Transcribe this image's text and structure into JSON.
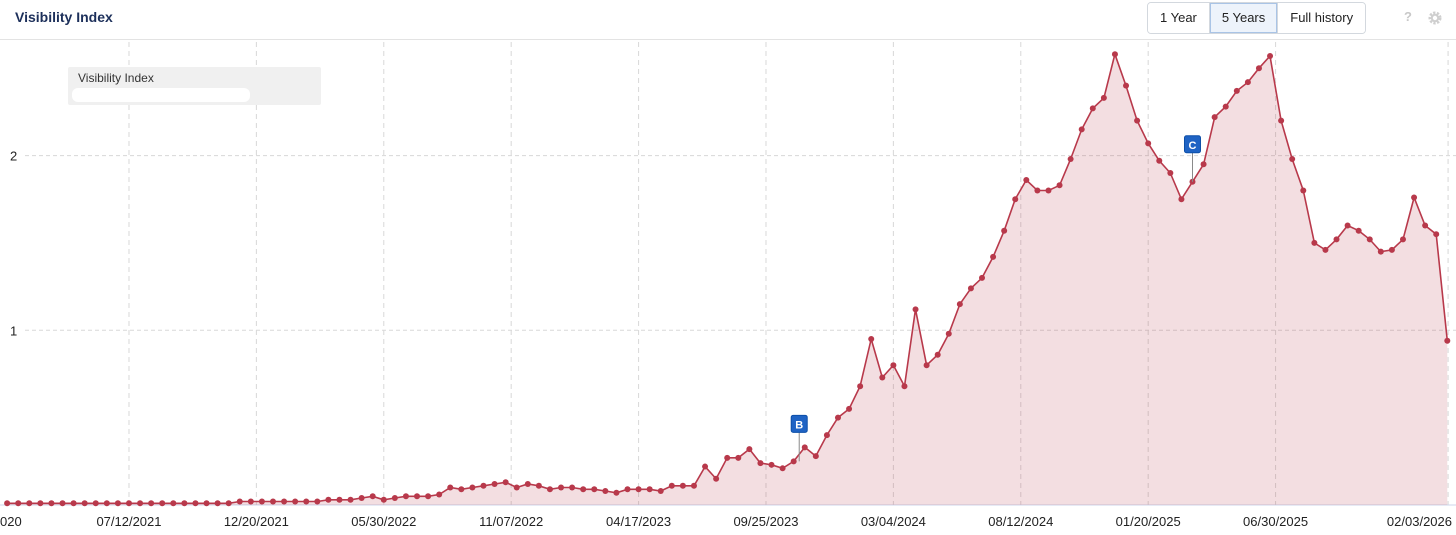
{
  "header": {
    "buttons": [
      "1 Year",
      "5 Years",
      "Full history"
    ],
    "active_button": 1,
    "help_icon": "?"
  },
  "chart_data": {
    "type": "area",
    "title": "Visibility Index",
    "x": [
      "2021-02-08",
      "2021-02-22",
      "2021-03-08",
      "2021-03-22",
      "2021-04-05",
      "2021-04-19",
      "2021-05-03",
      "2021-05-17",
      "2021-05-31",
      "2021-06-14",
      "2021-06-28",
      "2021-07-12",
      "2021-07-26",
      "2021-08-09",
      "2021-08-23",
      "2021-09-06",
      "2021-09-20",
      "2021-10-04",
      "2021-10-18",
      "2021-11-01",
      "2021-11-15",
      "2021-11-29",
      "2021-12-13",
      "2021-12-27",
      "2022-01-10",
      "2022-01-24",
      "2022-02-07",
      "2022-02-21",
      "2022-03-07",
      "2022-03-21",
      "2022-04-04",
      "2022-04-18",
      "2022-05-02",
      "2022-05-16",
      "2022-05-30",
      "2022-06-13",
      "2022-06-27",
      "2022-07-11",
      "2022-07-25",
      "2022-08-08",
      "2022-08-22",
      "2022-09-05",
      "2022-09-19",
      "2022-10-03",
      "2022-10-17",
      "2022-10-31",
      "2022-11-14",
      "2022-11-28",
      "2022-12-12",
      "2022-12-26",
      "2023-01-09",
      "2023-01-23",
      "2023-02-06",
      "2023-02-20",
      "2023-03-06",
      "2023-03-20",
      "2023-04-03",
      "2023-04-17",
      "2023-05-01",
      "2023-05-15",
      "2023-05-29",
      "2023-06-12",
      "2023-06-26",
      "2023-07-10",
      "2023-07-24",
      "2023-08-07",
      "2023-08-21",
      "2023-09-04",
      "2023-09-18",
      "2023-10-02",
      "2023-10-16",
      "2023-10-30",
      "2023-11-13",
      "2023-11-27",
      "2023-12-11",
      "2023-12-25",
      "2024-01-08",
      "2024-01-22",
      "2024-02-05",
      "2024-02-19",
      "2024-03-04",
      "2024-03-18",
      "2024-04-01",
      "2024-04-15",
      "2024-04-29",
      "2024-05-13",
      "2024-05-27",
      "2024-06-10",
      "2024-06-24",
      "2024-07-08",
      "2024-07-22",
      "2024-08-05",
      "2024-08-19",
      "2024-09-02",
      "2024-09-16",
      "2024-09-30",
      "2024-10-14",
      "2024-10-28",
      "2024-11-11",
      "2024-11-25",
      "2024-12-09",
      "2024-12-23",
      "2025-01-06",
      "2025-01-20",
      "2025-02-03",
      "2025-02-17",
      "2025-03-03",
      "2025-03-17",
      "2025-03-31",
      "2025-04-14",
      "2025-04-28",
      "2025-05-12",
      "2025-05-26",
      "2025-06-09",
      "2025-06-23",
      "2025-07-07",
      "2025-07-21",
      "2025-08-04",
      "2025-08-18",
      "2025-09-01",
      "2025-09-15",
      "2025-09-29",
      "2025-10-13",
      "2025-10-27",
      "2025-11-10",
      "2025-11-24",
      "2025-12-08",
      "2025-12-22",
      "2026-01-05",
      "2026-01-19",
      "2026-02-02"
    ],
    "series": [
      {
        "name": "Visibility Index",
        "color": "#b8394b",
        "values": [
          0.01,
          0.01,
          0.01,
          0.01,
          0.01,
          0.01,
          0.01,
          0.01,
          0.01,
          0.01,
          0.01,
          0.01,
          0.01,
          0.01,
          0.01,
          0.01,
          0.01,
          0.01,
          0.01,
          0.01,
          0.01,
          0.02,
          0.02,
          0.02,
          0.02,
          0.02,
          0.02,
          0.02,
          0.02,
          0.03,
          0.03,
          0.03,
          0.04,
          0.05,
          0.03,
          0.04,
          0.05,
          0.05,
          0.05,
          0.06,
          0.1,
          0.09,
          0.1,
          0.11,
          0.12,
          0.13,
          0.1,
          0.12,
          0.11,
          0.09,
          0.1,
          0.1,
          0.09,
          0.09,
          0.08,
          0.07,
          0.09,
          0.09,
          0.09,
          0.08,
          0.11,
          0.11,
          0.11,
          0.22,
          0.15,
          0.27,
          0.27,
          0.32,
          0.24,
          0.23,
          0.21,
          0.25,
          0.33,
          0.28,
          0.4,
          0.5,
          0.55,
          0.68,
          0.95,
          0.73,
          0.8,
          0.68,
          1.12,
          0.8,
          0.86,
          0.98,
          1.15,
          1.24,
          1.3,
          1.42,
          1.57,
          1.75,
          1.86,
          1.8,
          1.8,
          1.83,
          1.98,
          2.15,
          2.27,
          2.33,
          2.58,
          2.4,
          2.2,
          2.07,
          1.97,
          1.9,
          1.75,
          1.85,
          1.95,
          2.22,
          2.28,
          2.37,
          2.42,
          2.5,
          2.57,
          2.2,
          1.98,
          1.8,
          1.5,
          1.46,
          1.52,
          1.6,
          1.57,
          1.52,
          1.45,
          1.46,
          1.52,
          1.76,
          1.6,
          1.55,
          0.94
        ]
      }
    ],
    "xlim": [
      "2021-01-30",
      "2026-02-13"
    ],
    "xticks": [
      {
        "value": "2021-01-30",
        "label": "020"
      },
      {
        "value": "2021-07-12",
        "label": "07/12/2021"
      },
      {
        "value": "2021-12-20",
        "label": "12/20/2021"
      },
      {
        "value": "2022-05-30",
        "label": "05/30/2022"
      },
      {
        "value": "2022-11-07",
        "label": "11/07/2022"
      },
      {
        "value": "2023-04-17",
        "label": "04/17/2023"
      },
      {
        "value": "2023-09-25",
        "label": "09/25/2023"
      },
      {
        "value": "2024-03-04",
        "label": "03/04/2024"
      },
      {
        "value": "2024-08-12",
        "label": "08/12/2024"
      },
      {
        "value": "2025-01-20",
        "label": "01/20/2025"
      },
      {
        "value": "2025-06-30",
        "label": "06/30/2025"
      },
      {
        "value": "2026-02-03",
        "label": "02/03/2026"
      }
    ],
    "ylim": [
      0,
      2.65
    ],
    "yticks": [
      1,
      2
    ],
    "grid": true,
    "legend": "top-left",
    "annotations": [
      {
        "label": "B",
        "x": "2023-11-06"
      },
      {
        "label": "C",
        "x": "2025-03-17"
      }
    ]
  }
}
